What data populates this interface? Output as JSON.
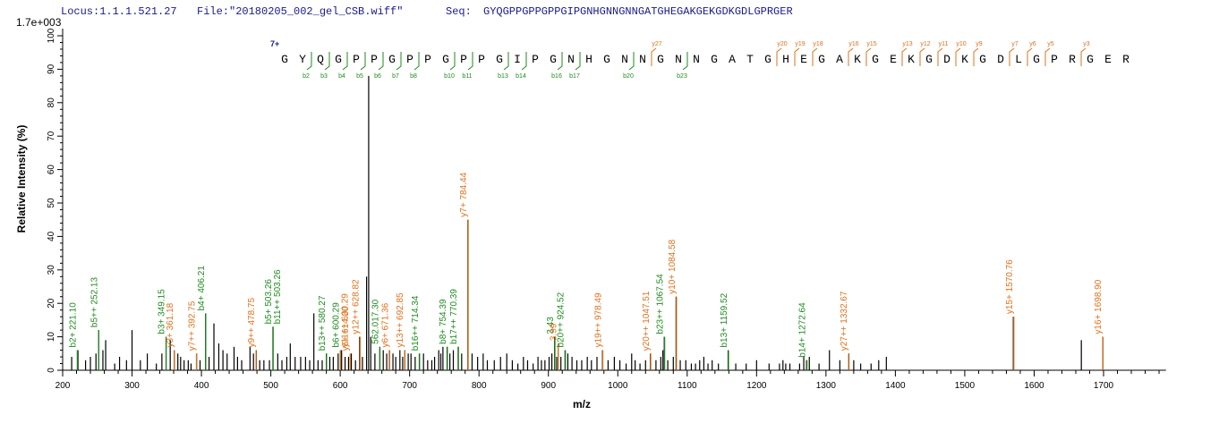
{
  "header": {
    "locus": "Locus:1.1.1.521.27",
    "file": "File:\"20180205_002_gel_CSB.wiff\"",
    "seq_label": "Seq:",
    "seq": "GYQGPPGPPGPPGIPGNHGNNGNNGATGHEGAKGEKGDKGDLGPRGER"
  },
  "chart_data": {
    "type": "bar",
    "title": "",
    "max_intensity_label": "1.7e+003",
    "xlabel": "m/z",
    "ylabel": "Relative  Intensity (%)",
    "xlim": [
      200,
      1790
    ],
    "ylim": [
      0,
      100
    ],
    "x_ticks": [
      200,
      300,
      400,
      500,
      600,
      700,
      800,
      900,
      1000,
      1100,
      1200,
      1300,
      1400,
      1500,
      1600,
      1700
    ],
    "y_ticks": [
      0,
      10,
      20,
      30,
      40,
      50,
      60,
      70,
      80,
      90,
      100
    ],
    "charge_label": "7+",
    "sequence_residues": [
      "G",
      "Y",
      "Q",
      "G",
      "P",
      "P",
      "G",
      "P",
      "P",
      "G",
      "P",
      "P",
      "G",
      "I",
      "P",
      "G",
      "N",
      "H",
      "G",
      "N",
      "N",
      "G",
      "N",
      "N",
      "G",
      "A",
      "T",
      "G",
      "H",
      "E",
      "G",
      "A",
      "K",
      "G",
      "E",
      "K",
      "G",
      "D",
      "K",
      "G",
      "D",
      "L",
      "G",
      "P",
      "R",
      "G",
      "E",
      "R"
    ],
    "b_ion_labels": [
      "b2",
      "b3",
      "b4",
      "b5",
      "b6",
      "b7",
      "b8",
      "b10",
      "b11",
      "b13",
      "b14",
      "b16",
      "b17",
      "b20",
      "b23"
    ],
    "y_ion_labels": [
      "y27",
      "y20",
      "y19",
      "y18",
      "y16",
      "y15",
      "y13",
      "y12",
      "y11",
      "y10",
      "y9",
      "y7",
      "y6",
      "y5",
      "y3"
    ],
    "labeled_peaks": [
      {
        "mz": 221.1,
        "intensity": 6,
        "label": "b2+ 221.10",
        "ion": "b"
      },
      {
        "mz": 252.13,
        "intensity": 12,
        "label": "b5++ 252.13",
        "ion": "b"
      },
      {
        "mz": 349.15,
        "intensity": 10,
        "label": "b3+ 349.15",
        "ion": "b"
      },
      {
        "mz": 361.18,
        "intensity": 6,
        "label": "y3+ 361.18",
        "ion": "y"
      },
      {
        "mz": 392.75,
        "intensity": 5,
        "label": "y7++ 392.75",
        "ion": "y"
      },
      {
        "mz": 406.21,
        "intensity": 17,
        "label": "b4+ 406.21",
        "ion": "b"
      },
      {
        "mz": 478.75,
        "intensity": 6,
        "label": "y9++ 478.75",
        "ion": "y"
      },
      {
        "mz": 503.26,
        "intensity": 13,
        "label": "b5+ 503.26",
        "ion": "b"
      },
      {
        "mz": 503.26,
        "intensity": 13,
        "label": "b11++ 503.26",
        "ion": "b"
      },
      {
        "mz": 580.27,
        "intensity": 5,
        "label": "b13++ 580.27",
        "ion": "b"
      },
      {
        "mz": 600.29,
        "intensity": 6,
        "label": "b6+ 600.29",
        "ion": "b"
      },
      {
        "mz": 600.29,
        "intensity": 6,
        "label": "y11++ 600.29",
        "ion": "y"
      },
      {
        "mz": 614.3,
        "intensity": 5,
        "label": "y5+ 614.30",
        "ion": "y"
      },
      {
        "mz": 628.82,
        "intensity": 10,
        "label": "y12++ 628.82",
        "ion": "y"
      },
      {
        "mz": 657.3,
        "intensity": 7,
        "label": "562.017.30",
        "ion": "b"
      },
      {
        "mz": 671.36,
        "intensity": 6,
        "label": "y6+ 671.36",
        "ion": "y"
      },
      {
        "mz": 692.85,
        "intensity": 6,
        "label": "y13++ 692.85",
        "ion": "y"
      },
      {
        "mz": 714.34,
        "intensity": 5,
        "label": "b16++ 714.34",
        "ion": "b"
      },
      {
        "mz": 754.39,
        "intensity": 7,
        "label": "b8+ 754.39",
        "ion": "b"
      },
      {
        "mz": 770.39,
        "intensity": 7,
        "label": "b17++ 770.39",
        "ion": "b"
      },
      {
        "mz": 784.44,
        "intensity": 45,
        "label": "y7+ 784.44",
        "ion": "y"
      },
      {
        "mz": 909.43,
        "intensity": 10,
        "label": "3.43",
        "ion": "b"
      },
      {
        "mz": 913.99,
        "intensity": 8,
        "label": "3.99",
        "ion": "y"
      },
      {
        "mz": 924.52,
        "intensity": 6,
        "label": "b20++ 924.52",
        "ion": "b"
      },
      {
        "mz": 978.49,
        "intensity": 6,
        "label": "y19++ 978.49",
        "ion": "y"
      },
      {
        "mz": 1047.51,
        "intensity": 5,
        "label": "y20++ 1047.51",
        "ion": "y"
      },
      {
        "mz": 1067.54,
        "intensity": 10,
        "label": "b23++ 1067.54",
        "ion": "b"
      },
      {
        "mz": 1084.58,
        "intensity": 22,
        "label": "y10+ 1084.58",
        "ion": "y"
      },
      {
        "mz": 1159.52,
        "intensity": 6,
        "label": "b13+ 1159.52",
        "ion": "b"
      },
      {
        "mz": 1272.64,
        "intensity": 3,
        "label": "b14+ 1272.64",
        "ion": "b"
      },
      {
        "mz": 1332.67,
        "intensity": 5,
        "label": "y27++ 1332.67",
        "ion": "y"
      },
      {
        "mz": 1570.76,
        "intensity": 16,
        "label": "y15+ 1570.76",
        "ion": "y"
      },
      {
        "mz": 1698.9,
        "intensity": 10,
        "label": "y16+ 1698.90",
        "ion": "y"
      }
    ],
    "peaks": [
      [
        213,
        4
      ],
      [
        222,
        6
      ],
      [
        233,
        3
      ],
      [
        240,
        4
      ],
      [
        248,
        5
      ],
      [
        252,
        12
      ],
      [
        258,
        6
      ],
      [
        262,
        9
      ],
      [
        275,
        2
      ],
      [
        282,
        4
      ],
      [
        292,
        3
      ],
      [
        300,
        12
      ],
      [
        312,
        3
      ],
      [
        322,
        5
      ],
      [
        335,
        2
      ],
      [
        343,
        5
      ],
      [
        349,
        10
      ],
      [
        355,
        9
      ],
      [
        361,
        6
      ],
      [
        366,
        5
      ],
      [
        370,
        4
      ],
      [
        375,
        3
      ],
      [
        381,
        3
      ],
      [
        385,
        2
      ],
      [
        393,
        5
      ],
      [
        398,
        3
      ],
      [
        406,
        17
      ],
      [
        411,
        4
      ],
      [
        418,
        14
      ],
      [
        425,
        8
      ],
      [
        431,
        6
      ],
      [
        437,
        5
      ],
      [
        447,
        7
      ],
      [
        452,
        4
      ],
      [
        458,
        3
      ],
      [
        470,
        7
      ],
      [
        475,
        5
      ],
      [
        479,
        6
      ],
      [
        484,
        3
      ],
      [
        490,
        3
      ],
      [
        498,
        3
      ],
      [
        503,
        13
      ],
      [
        510,
        5
      ],
      [
        516,
        3
      ],
      [
        523,
        4
      ],
      [
        528,
        8
      ],
      [
        535,
        4
      ],
      [
        543,
        4
      ],
      [
        550,
        4
      ],
      [
        556,
        3
      ],
      [
        562,
        17
      ],
      [
        568,
        3
      ],
      [
        574,
        3
      ],
      [
        580,
        5
      ],
      [
        585,
        4
      ],
      [
        590,
        4
      ],
      [
        597,
        5
      ],
      [
        602,
        6
      ],
      [
        607,
        4
      ],
      [
        612,
        4
      ],
      [
        616,
        5
      ],
      [
        622,
        3
      ],
      [
        628,
        10
      ],
      [
        632,
        4
      ],
      [
        638,
        28
      ],
      [
        641,
        88
      ],
      [
        644,
        10
      ],
      [
        650,
        5
      ],
      [
        657,
        7
      ],
      [
        662,
        6
      ],
      [
        667,
        5
      ],
      [
        671,
        6
      ],
      [
        676,
        5
      ],
      [
        680,
        4
      ],
      [
        686,
        6
      ],
      [
        690,
        4
      ],
      [
        693,
        6
      ],
      [
        698,
        5
      ],
      [
        702,
        5
      ],
      [
        708,
        4
      ],
      [
        714,
        5
      ],
      [
        720,
        5
      ],
      [
        726,
        3
      ],
      [
        732,
        3
      ],
      [
        736,
        4
      ],
      [
        742,
        6
      ],
      [
        745,
        5
      ],
      [
        748,
        7
      ],
      [
        754,
        7
      ],
      [
        758,
        5
      ],
      [
        763,
        6
      ],
      [
        770,
        7
      ],
      [
        775,
        5
      ],
      [
        784,
        45
      ],
      [
        790,
        5
      ],
      [
        798,
        4
      ],
      [
        806,
        5
      ],
      [
        812,
        3
      ],
      [
        822,
        3
      ],
      [
        831,
        4
      ],
      [
        840,
        5
      ],
      [
        848,
        3
      ],
      [
        856,
        2
      ],
      [
        864,
        4
      ],
      [
        870,
        3
      ],
      [
        878,
        2
      ],
      [
        885,
        4
      ],
      [
        890,
        3
      ],
      [
        895,
        3
      ],
      [
        901,
        4
      ],
      [
        905,
        5
      ],
      [
        909,
        10
      ],
      [
        912,
        4
      ],
      [
        914,
        8
      ],
      [
        918,
        4
      ],
      [
        924,
        6
      ],
      [
        928,
        5
      ],
      [
        934,
        4
      ],
      [
        941,
        3
      ],
      [
        948,
        3
      ],
      [
        956,
        4
      ],
      [
        962,
        3
      ],
      [
        970,
        4
      ],
      [
        978,
        6
      ],
      [
        986,
        3
      ],
      [
        995,
        4
      ],
      [
        1003,
        3
      ],
      [
        1012,
        2
      ],
      [
        1020,
        5
      ],
      [
        1025,
        3
      ],
      [
        1032,
        2
      ],
      [
        1040,
        3
      ],
      [
        1047,
        5
      ],
      [
        1055,
        3
      ],
      [
        1062,
        4
      ],
      [
        1065,
        6
      ],
      [
        1067,
        10
      ],
      [
        1072,
        3
      ],
      [
        1080,
        4
      ],
      [
        1084,
        22
      ],
      [
        1090,
        3
      ],
      [
        1098,
        3
      ],
      [
        1106,
        2
      ],
      [
        1112,
        2
      ],
      [
        1118,
        3
      ],
      [
        1124,
        4
      ],
      [
        1130,
        2
      ],
      [
        1136,
        3
      ],
      [
        1145,
        2
      ],
      [
        1159,
        6
      ],
      [
        1170,
        2
      ],
      [
        1185,
        2
      ],
      [
        1200,
        3
      ],
      [
        1218,
        2
      ],
      [
        1233,
        2
      ],
      [
        1238,
        3
      ],
      [
        1242,
        2
      ],
      [
        1248,
        2
      ],
      [
        1262,
        2
      ],
      [
        1268,
        4
      ],
      [
        1272,
        3
      ],
      [
        1276,
        4
      ],
      [
        1290,
        2
      ],
      [
        1305,
        6
      ],
      [
        1320,
        3
      ],
      [
        1333,
        5
      ],
      [
        1340,
        3
      ],
      [
        1350,
        2
      ],
      [
        1365,
        2
      ],
      [
        1376,
        3
      ],
      [
        1387,
        4
      ],
      [
        1570,
        16
      ],
      [
        1668,
        9
      ],
      [
        1699,
        10
      ]
    ]
  }
}
